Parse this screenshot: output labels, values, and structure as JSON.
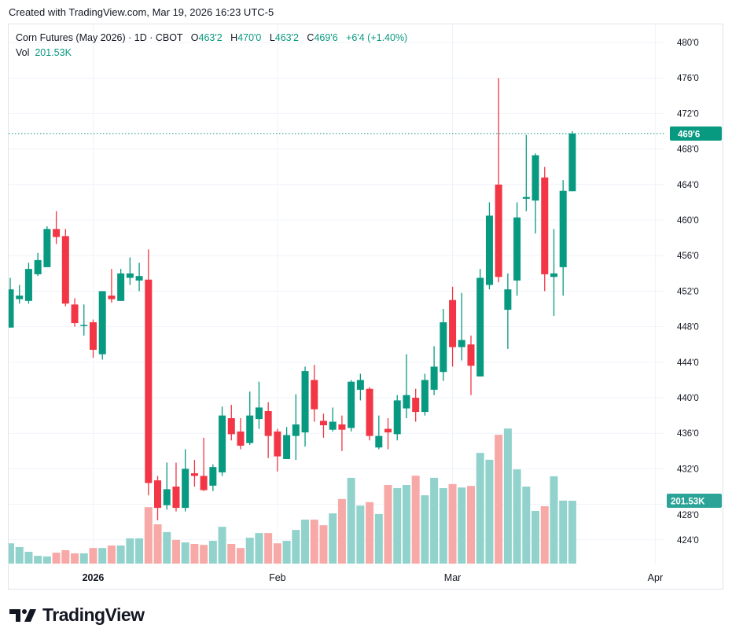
{
  "credit": "Created with TradingView.com, Mar 19, 2026 16:23 UTC-5",
  "legend": {
    "symbol": "Corn Futures (May 2026) · 1D · CBOT",
    "o_label": "O",
    "o_value": "463'2",
    "h_label": "H",
    "h_value": "470'0",
    "l_label": "L",
    "l_value": "463'2",
    "c_label": "C",
    "c_value": "469'6",
    "change": "+6'4 (+1.40%)",
    "vol_label": "Vol",
    "vol_value": "201.53K"
  },
  "colors": {
    "up": "#089981",
    "down": "#F23645",
    "vol_up": "#92D2CC",
    "vol_down": "#F7A9A7",
    "grid": "#F0F3FA"
  },
  "logo_text": "TradingView",
  "chart_data": {
    "type": "candlestick",
    "title": "Corn Futures (May 2026) · 1D · CBOT",
    "price_unit": "cents/bushel (decimal; axis shows eighths e.g. 469'6 = 469.75)",
    "ylim": [
      421,
      482
    ],
    "y_ticks": [
      "480'0",
      "476'0",
      "472'0",
      "468'0",
      "464'0",
      "460'0",
      "456'0",
      "452'0",
      "448'0",
      "444'0",
      "440'0",
      "436'0",
      "432'0",
      "428'0",
      "424'0"
    ],
    "y_tick_values": [
      480,
      476,
      472,
      468,
      464,
      460,
      456,
      452,
      448,
      444,
      440,
      436,
      432,
      428,
      424
    ],
    "x_ticks": [
      {
        "label": "2026",
        "index": 9
      },
      {
        "label": "Feb",
        "index": 29
      },
      {
        "label": "Mar",
        "index": 48
      },
      {
        "label": "Apr",
        "index": 70
      }
    ],
    "last_price_label": "469'6",
    "last_price": 469.75,
    "last_volume_label": "201.53K",
    "grid": true,
    "volume_unit": "K",
    "open": [
      447.9,
      451.1,
      450.9,
      453.9,
      454.7,
      459.0,
      458.2,
      450.5,
      448.2,
      448.5,
      444.9,
      451.5,
      450.9,
      453.5,
      453.2,
      453.3,
      430.7,
      427.9,
      430.0,
      427.6,
      431.5,
      431.2,
      430.1,
      431.6,
      437.7,
      436.2,
      434.9,
      437.6,
      438.5,
      436.2,
      433.1,
      435.7,
      436.1,
      442.0,
      437.4,
      436.4,
      437.0,
      436.6,
      440.9,
      441.0,
      434.4,
      436.5,
      435.9,
      438.8,
      440.0,
      438.4,
      440.9,
      442.9,
      451.0,
      445.7,
      446.0,
      442.4,
      452.7,
      464.0,
      449.9,
      453.2,
      462.4,
      462.2,
      464.8,
      453.6,
      454.7,
      463.25
    ],
    "high": [
      453.5,
      452.7,
      455.2,
      456.3,
      459.3,
      461.0,
      459.0,
      451.2,
      450.5,
      448.8,
      452.0,
      454.5,
      454.5,
      455.8,
      455.2,
      456.7,
      431.2,
      432.7,
      432.7,
      434.2,
      433.0,
      435.5,
      432.5,
      439.0,
      439.2,
      437.7,
      440.7,
      441.8,
      439.5,
      436.5,
      436.7,
      440.4,
      443.5,
      443.7,
      438.2,
      438.9,
      438.0,
      442.0,
      442.7,
      441.2,
      438.0,
      437.7,
      440.3,
      444.9,
      441.0,
      442.7,
      445.8,
      450.0,
      452.5,
      451.8,
      447.0,
      454.5,
      462.0,
      476.0,
      454.0,
      462.0,
      469.6,
      467.5,
      466.0,
      459.0,
      464.5,
      470.0
    ],
    "low": [
      447.9,
      450.6,
      450.6,
      453.7,
      454.7,
      457.3,
      450.3,
      448.0,
      447.0,
      444.5,
      444.3,
      450.7,
      450.9,
      452.7,
      452.0,
      429.0,
      426.2,
      427.4,
      427.2,
      427.2,
      430.0,
      429.5,
      429.5,
      431.2,
      435.2,
      434.2,
      434.7,
      436.5,
      433.2,
      431.7,
      433.1,
      433.0,
      434.5,
      437.3,
      435.5,
      436.2,
      434.0,
      436.2,
      439.7,
      435.2,
      434.2,
      434.2,
      435.2,
      437.7,
      437.3,
      438.0,
      440.3,
      441.9,
      443.5,
      444.2,
      440.3,
      442.4,
      452.2,
      453.0,
      445.5,
      451.5,
      461.0,
      458.5,
      452.0,
      449.2,
      451.5,
      463.25
    ],
    "close": [
      452.2,
      451.5,
      454.5,
      455.5,
      459.0,
      458.1,
      450.6,
      448.4,
      448.2,
      445.4,
      452.0,
      451.1,
      454.0,
      454.0,
      453.7,
      430.4,
      427.6,
      429.7,
      427.6,
      432.0,
      431.2,
      429.6,
      432.2,
      438.0,
      435.9,
      434.6,
      438.0,
      438.9,
      435.7,
      433.4,
      435.8,
      437.0,
      443.0,
      438.7,
      436.9,
      437.3,
      436.4,
      441.8,
      442.0,
      435.7,
      435.7,
      436.1,
      439.7,
      440.3,
      438.4,
      442.0,
      443.5,
      448.5,
      445.7,
      446.5,
      443.6,
      453.5,
      460.5,
      453.6,
      452.2,
      460.3,
      462.6,
      467.3,
      453.9,
      454.0,
      463.3,
      469.75
    ],
    "volume": [
      65,
      53,
      38,
      25,
      23,
      35,
      43,
      33,
      33,
      50,
      50,
      58,
      58,
      81,
      81,
      181,
      126,
      101,
      76,
      68,
      63,
      60,
      73,
      118,
      63,
      50,
      83,
      98,
      98,
      65,
      73,
      108,
      141,
      141,
      123,
      161,
      207,
      275,
      186,
      197,
      159,
      252,
      242,
      252,
      282,
      219,
      275,
      242,
      255,
      244,
      249,
      355,
      333,
      413,
      433,
      302,
      247,
      169,
      184,
      280,
      202,
      201.53
    ]
  }
}
